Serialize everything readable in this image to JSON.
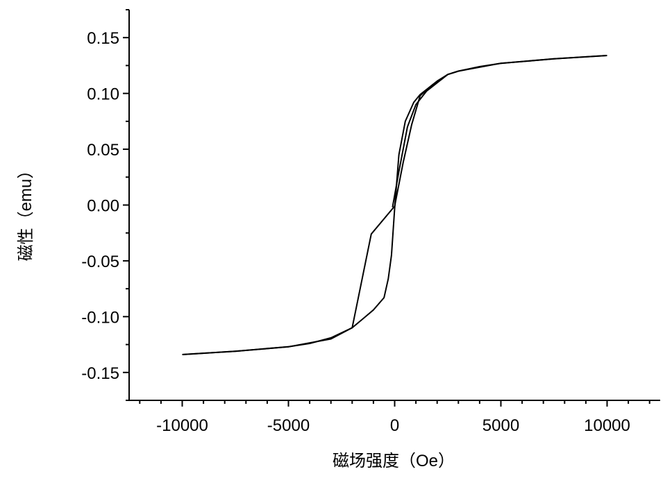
{
  "chart_data": {
    "type": "line",
    "title": "",
    "xlabel": "磁场强度（Oe）",
    "ylabel": "磁性（emu）",
    "xlim": [
      -12500,
      12500
    ],
    "ylim": [
      -0.175,
      0.175
    ],
    "x_ticks": [
      -10000,
      -5000,
      0,
      5000,
      10000
    ],
    "x_tick_labels": [
      "-10000",
      "-5000",
      "0",
      "5000",
      "10000"
    ],
    "y_ticks": [
      -0.15,
      -0.1,
      -0.05,
      0.0,
      0.05,
      0.1,
      0.15
    ],
    "y_tick_labels": [
      "-0.15",
      "-0.10",
      "-0.05",
      "0.00",
      "0.05",
      "0.10",
      "0.15"
    ],
    "grid": false,
    "line_color": "#000000",
    "series": [
      {
        "points": [
          [
            -10000,
            -0.134
          ],
          [
            -7500,
            -0.131
          ],
          [
            -5000,
            -0.127
          ],
          [
            -4000,
            -0.124
          ],
          [
            -3000,
            -0.119
          ],
          [
            -2000,
            -0.11
          ],
          [
            -1500,
            -0.102
          ],
          [
            -1000,
            -0.094
          ],
          [
            -500,
            -0.083
          ],
          [
            -300,
            -0.066
          ],
          [
            -150,
            -0.045
          ],
          [
            0,
            -0.003
          ],
          [
            200,
            0.045
          ],
          [
            500,
            0.075
          ],
          [
            900,
            0.092
          ],
          [
            1200,
            0.099
          ],
          [
            2000,
            0.111
          ],
          [
            2500,
            0.117
          ],
          [
            3000,
            0.12
          ],
          [
            4000,
            0.124
          ],
          [
            5000,
            0.127
          ],
          [
            7500,
            0.131
          ],
          [
            10000,
            0.134
          ]
        ]
      },
      {
        "points": [
          [
            10000,
            0.134
          ],
          [
            7500,
            0.131
          ],
          [
            5000,
            0.127
          ],
          [
            3000,
            0.12
          ],
          [
            2500,
            0.117
          ],
          [
            1800,
            0.108
          ],
          [
            1200,
            0.098
          ],
          [
            800,
            0.072
          ],
          [
            400,
            0.038
          ],
          [
            0,
            -0.001
          ],
          [
            -1100,
            -0.026
          ],
          [
            -2000,
            -0.11
          ],
          [
            -3000,
            -0.12
          ],
          [
            -5000,
            -0.127
          ],
          [
            -7500,
            -0.131
          ],
          [
            -10000,
            -0.134
          ]
        ]
      },
      {
        "points": [
          [
            -100,
            -0.002
          ],
          [
            200,
            0.03
          ],
          [
            600,
            0.07
          ],
          [
            1000,
            0.09
          ],
          [
            1500,
            0.102
          ],
          [
            2500,
            0.117
          ]
        ]
      }
    ]
  }
}
